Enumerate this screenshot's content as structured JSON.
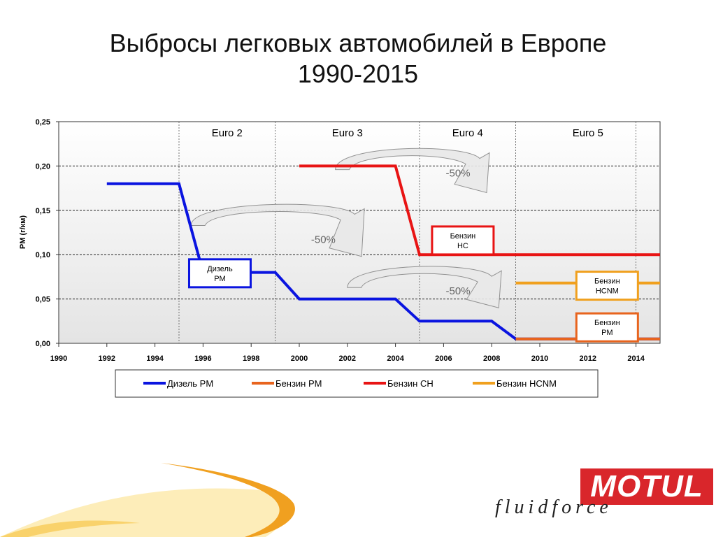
{
  "slide": {
    "title_line1": "Выбросы легковых автомобилей в Европе",
    "title_line2": "1990-2015"
  },
  "chart_data": {
    "type": "line",
    "ylabel": "PM (г/км)",
    "xlabel": "",
    "xlim": [
      1990,
      2015
    ],
    "ylim": [
      0,
      0.25
    ],
    "x_ticks": [
      1990,
      1992,
      1994,
      1996,
      1998,
      2000,
      2002,
      2004,
      2006,
      2008,
      2010,
      2012,
      2014
    ],
    "y_ticks": [
      "0,00",
      "0,05",
      "0,10",
      "0,15",
      "0,20",
      "0,25"
    ],
    "y_tick_values": [
      0,
      0.05,
      0.1,
      0.15,
      0.2,
      0.25
    ],
    "grid": "horizontal",
    "legend_position": "bottom",
    "eras": [
      {
        "label": "Euro 2",
        "start": 1995,
        "end": 1999
      },
      {
        "label": "Euro 3",
        "start": 1999,
        "end": 2005
      },
      {
        "label": "Euro 4",
        "start": 2005,
        "end": 2009
      },
      {
        "label": "Euro 5",
        "start": 2009,
        "end": 2015
      }
    ],
    "series": [
      {
        "name": "Дизель PM",
        "color": "#0a14e0",
        "points": [
          [
            1992,
            0.18
          ],
          [
            1995,
            0.18
          ],
          [
            1996,
            0.08
          ],
          [
            1999,
            0.08
          ],
          [
            2000,
            0.05
          ],
          [
            2004,
            0.05
          ],
          [
            2005,
            0.025
          ],
          [
            2008,
            0.025
          ],
          [
            2009,
            0.005
          ],
          [
            2015,
            0.005
          ]
        ]
      },
      {
        "name": "Бензин PM",
        "color": "#e8641e",
        "points": [
          [
            2009,
            0.005
          ],
          [
            2015,
            0.005
          ]
        ]
      },
      {
        "name": "Бензин CH",
        "color": "#e81414",
        "points": [
          [
            2000,
            0.2
          ],
          [
            2004,
            0.2
          ],
          [
            2005,
            0.1
          ],
          [
            2015,
            0.1
          ]
        ]
      },
      {
        "name": "Бензин HCNM",
        "color": "#f0a01e",
        "points": [
          [
            2009,
            0.068
          ],
          [
            2015,
            0.068
          ]
        ]
      }
    ],
    "annotations": [
      {
        "text": "-50%",
        "x": 2001,
        "y": 0.118
      },
      {
        "text": "-50%",
        "x": 2006.6,
        "y": 0.193
      },
      {
        "text": "-50%",
        "x": 2006.6,
        "y": 0.06
      }
    ],
    "labels": [
      {
        "line1": "Дизель",
        "line2": "PM",
        "border": "#0a14e0",
        "x": 1996.7,
        "y": 0.079
      },
      {
        "line1": "Бензин",
        "line2": "HC",
        "border": "#e81414",
        "x": 2006.8,
        "y": 0.116
      },
      {
        "line1": "Бензин",
        "line2": "HCNM",
        "border": "#f0a01e",
        "x": 2012.8,
        "y": 0.065
      },
      {
        "line1": "Бензин",
        "line2": "PM",
        "border": "#e8641e",
        "x": 2012.8,
        "y": 0.018
      }
    ]
  },
  "brand": {
    "logo_text": "MOTUL",
    "tagline": "fluidforce"
  }
}
